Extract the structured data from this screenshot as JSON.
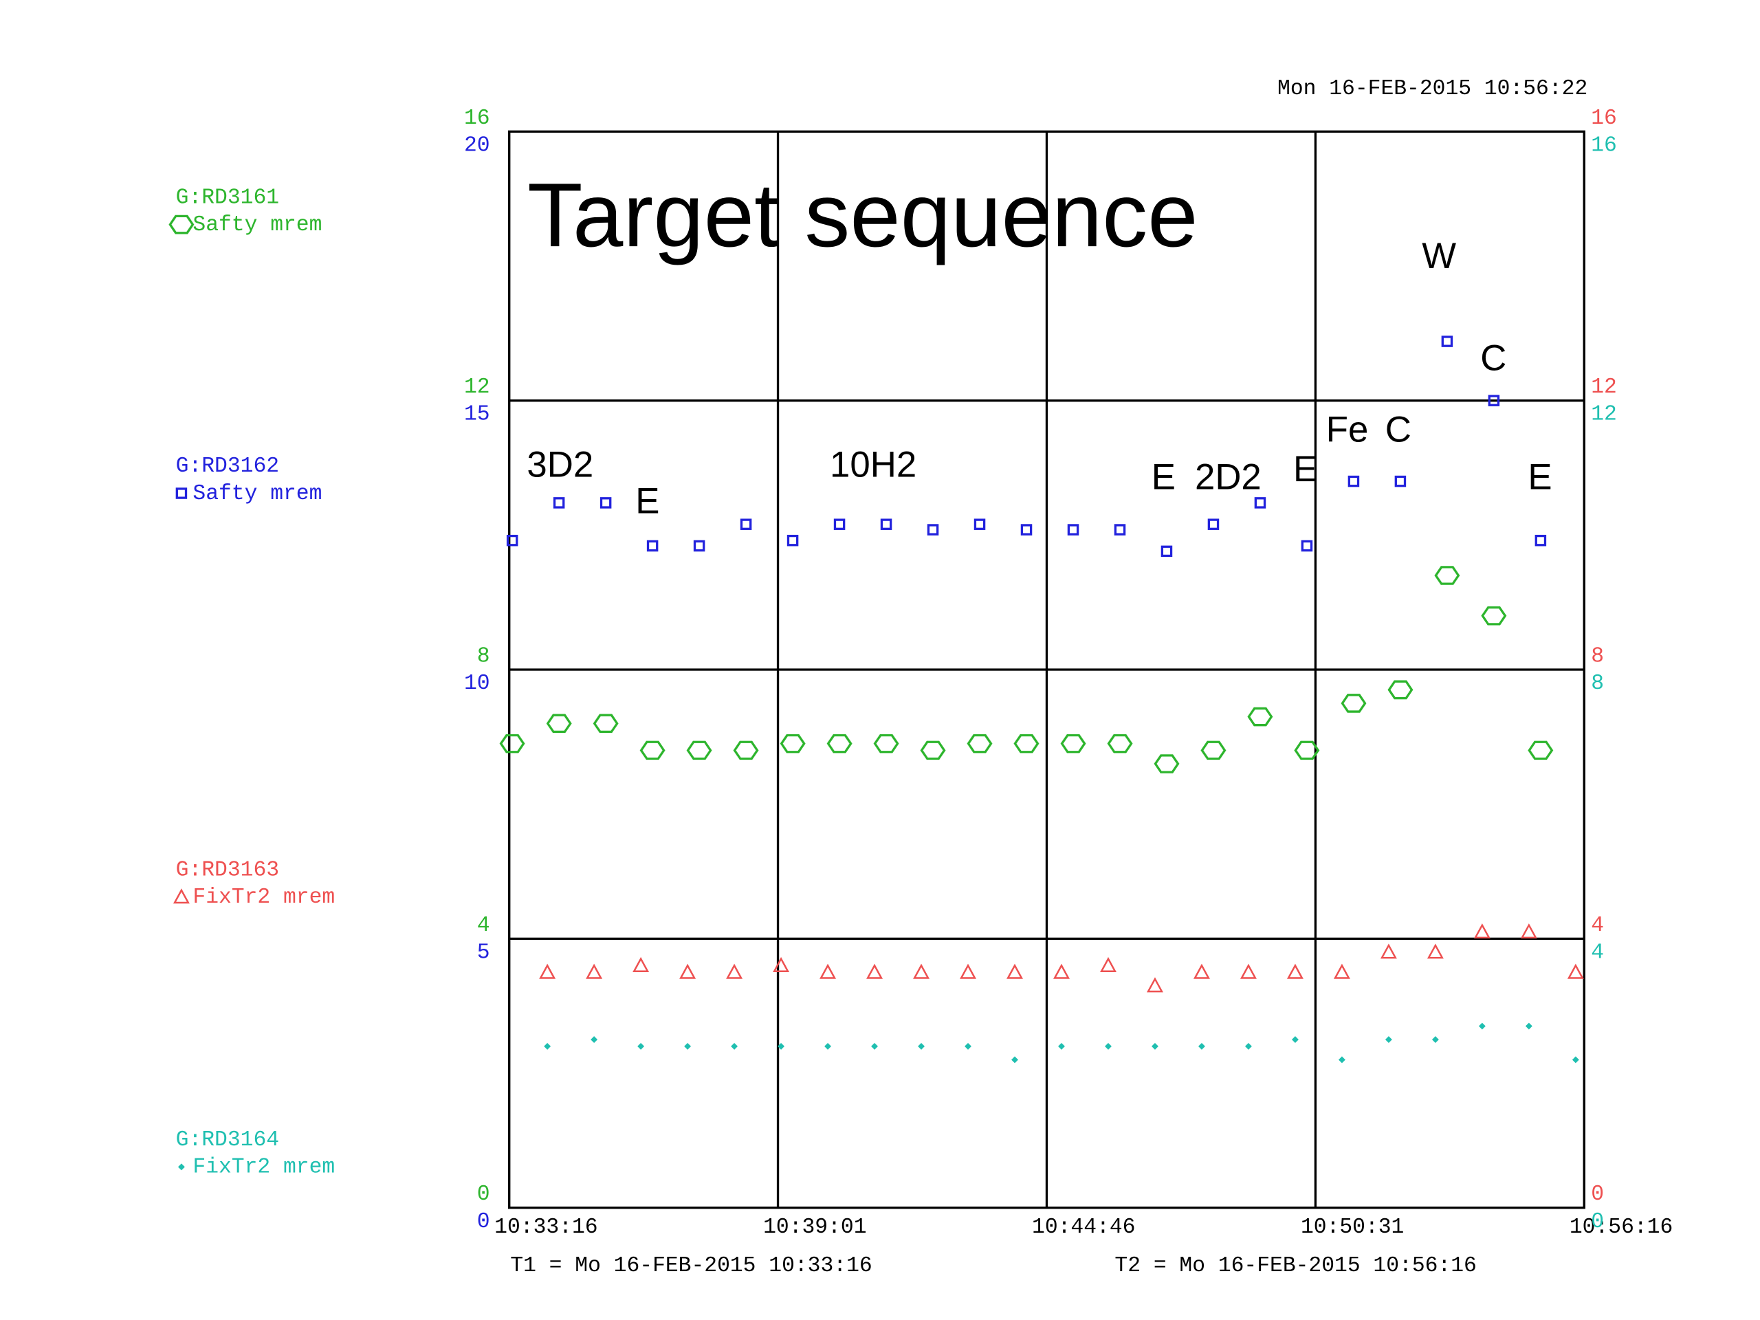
{
  "chart_data": {
    "type": "scatter",
    "title": "Target sequence",
    "timestamp": "Mon 16-FEB-2015 10:56:22",
    "t1_label": "T1 = Mo 16-FEB-2015 10:33:16",
    "t2_label": "T2 = Mo 16-FEB-2015 10:56:16",
    "xlim": [
      "10:33:16",
      "10:56:16"
    ],
    "xticks": [
      "10:33:16",
      "10:39:01",
      "10:44:46",
      "10:50:31",
      "10:56:16"
    ],
    "grid": true,
    "annotations": [
      "3D2",
      "E",
      "10H2",
      "E",
      "2D2",
      "E",
      "Fe",
      "C",
      "W",
      "C",
      "E"
    ],
    "series": [
      {
        "name": "G:RD3161",
        "unit": "Safty  mrem",
        "color": "#2db52d",
        "marker": "hexagon",
        "side": "left",
        "ylim": [
          0,
          16
        ],
        "yticks": [
          0,
          4,
          8,
          12,
          16
        ],
        "x": [
          "10:33:20",
          "10:34:20",
          "10:35:20",
          "10:36:20",
          "10:37:20",
          "10:38:20",
          "10:39:20",
          "10:40:20",
          "10:41:20",
          "10:42:20",
          "10:43:20",
          "10:44:20",
          "10:45:20",
          "10:46:20",
          "10:47:20",
          "10:48:20",
          "10:49:20",
          "10:50:20",
          "10:51:20",
          "10:52:20",
          "10:53:20",
          "10:54:20",
          "10:55:20"
        ],
        "values": [
          6.9,
          7.2,
          7.2,
          6.8,
          6.8,
          6.8,
          6.9,
          6.9,
          6.9,
          6.8,
          6.9,
          6.9,
          6.9,
          6.9,
          6.6,
          6.8,
          7.3,
          6.8,
          7.5,
          7.7,
          9.4,
          8.8,
          6.8
        ]
      },
      {
        "name": "G:RD3162",
        "unit": "Safty  mrem",
        "color": "#2222dd",
        "marker": "square",
        "side": "left",
        "ylim": [
          0,
          20
        ],
        "yticks": [
          0,
          5,
          10,
          15,
          20
        ],
        "x": [
          "10:33:20",
          "10:34:20",
          "10:35:20",
          "10:36:20",
          "10:37:20",
          "10:38:20",
          "10:39:20",
          "10:40:20",
          "10:41:20",
          "10:42:20",
          "10:43:20",
          "10:44:20",
          "10:45:20",
          "10:46:20",
          "10:47:20",
          "10:48:20",
          "10:49:20",
          "10:50:20",
          "10:51:20",
          "10:52:20",
          "10:53:20",
          "10:54:20",
          "10:55:20"
        ],
        "values": [
          12.4,
          13.1,
          13.1,
          12.3,
          12.3,
          12.7,
          12.4,
          12.7,
          12.7,
          12.6,
          12.7,
          12.6,
          12.6,
          12.6,
          12.2,
          12.7,
          13.1,
          12.3,
          13.5,
          13.5,
          16.1,
          15.0,
          12.4
        ]
      },
      {
        "name": "G:RD3163",
        "unit": "FixTr2 mrem",
        "color": "#ee5050",
        "marker": "triangle",
        "side": "right",
        "ylim": [
          0,
          16
        ],
        "yticks": [
          0,
          4,
          8,
          12,
          16
        ],
        "x": [
          "10:34:05",
          "10:35:05",
          "10:36:05",
          "10:37:05",
          "10:38:05",
          "10:39:05",
          "10:40:05",
          "10:41:05",
          "10:42:05",
          "10:43:05",
          "10:44:05",
          "10:45:05",
          "10:46:05",
          "10:47:05",
          "10:48:05",
          "10:49:05",
          "10:50:05",
          "10:51:05",
          "10:52:05",
          "10:53:05",
          "10:54:05",
          "10:55:05",
          "10:56:05"
        ],
        "values": [
          3.5,
          3.5,
          3.6,
          3.5,
          3.5,
          3.6,
          3.5,
          3.5,
          3.5,
          3.5,
          3.5,
          3.5,
          3.6,
          3.3,
          3.5,
          3.5,
          3.5,
          3.5,
          3.8,
          3.8,
          4.1,
          4.1,
          3.5
        ]
      },
      {
        "name": "G:RD3164",
        "unit": "FixTr2 mrem",
        "color": "#1fbfb0",
        "marker": "diamond",
        "side": "right",
        "ylim": [
          0,
          16
        ],
        "yticks": [
          0,
          4,
          8,
          12,
          16
        ],
        "x": [
          "10:34:05",
          "10:35:05",
          "10:36:05",
          "10:37:05",
          "10:38:05",
          "10:39:05",
          "10:40:05",
          "10:41:05",
          "10:42:05",
          "10:43:05",
          "10:44:05",
          "10:45:05",
          "10:46:05",
          "10:47:05",
          "10:48:05",
          "10:49:05",
          "10:50:05",
          "10:51:05",
          "10:52:05",
          "10:53:05",
          "10:54:05",
          "10:55:05",
          "10:56:05"
        ],
        "values": [
          2.4,
          2.5,
          2.4,
          2.4,
          2.4,
          2.4,
          2.4,
          2.4,
          2.4,
          2.4,
          2.2,
          2.4,
          2.4,
          2.4,
          2.4,
          2.4,
          2.5,
          2.2,
          2.5,
          2.5,
          2.7,
          2.7,
          2.2
        ]
      }
    ]
  }
}
